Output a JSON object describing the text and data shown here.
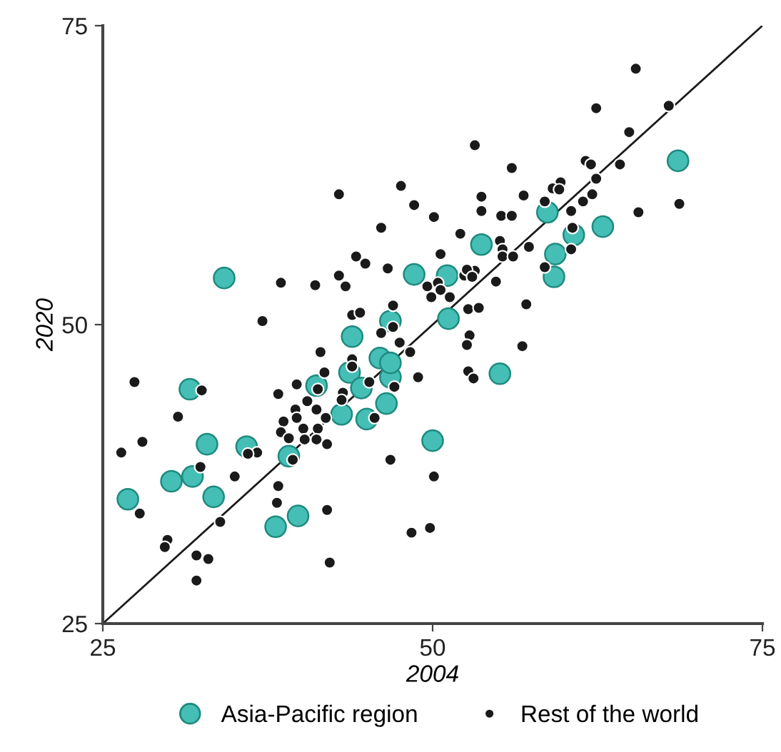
{
  "chart_data": {
    "type": "scatter",
    "xlabel": "2004",
    "ylabel": "2020",
    "xlim": [
      25,
      75
    ],
    "ylim": [
      25,
      75
    ],
    "xticks": [
      25,
      50,
      75
    ],
    "yticks": [
      25,
      50,
      75
    ],
    "grid": false,
    "legend": "bottom",
    "marker": "circle",
    "series": [
      {
        "name": "Asia-Pacific region",
        "color": "#45bfb5",
        "x": [
          26.9,
          30.2,
          31.6,
          31.8,
          32.9,
          33.4,
          34.2,
          35.9,
          38.1,
          39.1,
          39.8,
          41.2,
          42.5,
          43.1,
          43.2,
          43.7,
          43.9,
          44.6,
          45.0,
          45.9,
          46.0,
          46.5,
          46.8,
          46.8,
          46.8,
          48.6,
          50.0,
          51.1,
          51.2,
          53.7,
          55.1,
          58.7,
          59.2,
          59.3,
          60.7,
          62.9,
          68.6
        ],
        "values": [
          35.4,
          36.9,
          44.6,
          37.3,
          40.0,
          35.6,
          53.9,
          39.8,
          33.1,
          39.0,
          34.0,
          44.9,
          null,
          42.5,
          null,
          46.0,
          49.0,
          44.7,
          42.1,
          null,
          47.2,
          43.4,
          50.3,
          45.6,
          46.8,
          54.2,
          40.3,
          54.1,
          50.5,
          56.7,
          45.9,
          59.4,
          54.0,
          55.9,
          57.5,
          58.2,
          63.7
        ]
      },
      {
        "name": "Rest of the world",
        "color": "#1a1a1a",
        "x": [
          27.4,
          32.5,
          30.7,
          28.0,
          26.4,
          32.4,
          35.0,
          27.8,
          29.9,
          29.7,
          32.1,
          33.0,
          32.1,
          33.9,
          38.3,
          38.2,
          42.0,
          42.2,
          41.5,
          38.3,
          39.7,
          39.4,
          38.7,
          38.5,
          36.7,
          36.0,
          46.1,
          52.1,
          44.2,
          44.9,
          46.6,
          38.5,
          41.1,
          42.9,
          43.4,
          49.6,
          50.4,
          50.6,
          51.3,
          49.9,
          52.4,
          53.2,
          37.1,
          43.9,
          44.5,
          47.0,
          47.0,
          46.1,
          47.5,
          52.7,
          53.5,
          52.8,
          52.6,
          48.3,
          43.9,
          43.9,
          41.8,
          41.3,
          43.2,
          43.1,
          45.2,
          47.1,
          48.9,
          52.7,
          53.1,
          40.5,
          39.6,
          39.7,
          41.2,
          41.9,
          40.2,
          41.3,
          40.3,
          41.2,
          42.0,
          39.1,
          45.6,
          46.8,
          50.1,
          48.4,
          49.8,
          62.4,
          67.9,
          64.9,
          53.2,
          56.0,
          61.6,
          62.0,
          64.2,
          59.7,
          59.1,
          59.6,
          56.9,
          53.7,
          53.7,
          55.2,
          56.0,
          58.5,
          60.5,
          61.4,
          62.1,
          62.4,
          65.6,
          68.7,
          50.1,
          48.6,
          55.1,
          55.3,
          55.3,
          56.1,
          57.3,
          50.6,
          60.6,
          60.5,
          58.5,
          54.8,
          52.6,
          53.0,
          57.1,
          56.8,
          65.4,
          42.9,
          47.6
        ],
        "values": [
          45.2,
          44.5,
          42.3,
          40.2,
          39.3,
          38.1,
          37.3,
          34.2,
          32.0,
          31.4,
          30.7,
          30.4,
          28.6,
          33.5,
          36.5,
          35.1,
          34.5,
          30.1,
          47.7,
          44.2,
          45.0,
          38.7,
          41.9,
          41.0,
          39.3,
          39.2,
          58.1,
          57.6,
          55.7,
          55.1,
          54.7,
          53.5,
          53.3,
          54.1,
          53.2,
          53.2,
          53.5,
          52.9,
          52.3,
          52.3,
          54.1,
          54.5,
          50.3,
          50.8,
          51.0,
          51.6,
          49.8,
          49.3,
          48.5,
          51.3,
          51.4,
          49.1,
          48.3,
          47.7,
          47.1,
          46.5,
          46.0,
          44.6,
          44.3,
          43.7,
          45.2,
          44.8,
          45.6,
          46.1,
          45.5,
          43.6,
          42.9,
          42.2,
          42.9,
          42.2,
          41.3,
          41.3,
          40.4,
          40.4,
          40.0,
          40.5,
          42.2,
          38.7,
          37.3,
          32.6,
          33.0,
          68.1,
          68.3,
          66.1,
          65.0,
          63.1,
          63.7,
          63.4,
          63.4,
          61.9,
          61.4,
          61.3,
          60.8,
          60.7,
          59.5,
          59.1,
          59.1,
          60.3,
          59.5,
          60.3,
          60.9,
          62.2,
          59.4,
          60.1,
          59.0,
          60.0,
          57.0,
          56.3,
          55.7,
          55.7,
          56.5,
          55.9,
          58.1,
          56.3,
          54.8,
          53.6,
          54.6,
          54.0,
          51.7,
          48.2,
          71.4,
          60.9,
          61.6
        ]
      },
      {
        "type": "line",
        "color": "#1a1a1a",
        "x": [
          25,
          75
        ],
        "values": [
          25,
          75
        ],
        "marker": "none"
      }
    ]
  }
}
